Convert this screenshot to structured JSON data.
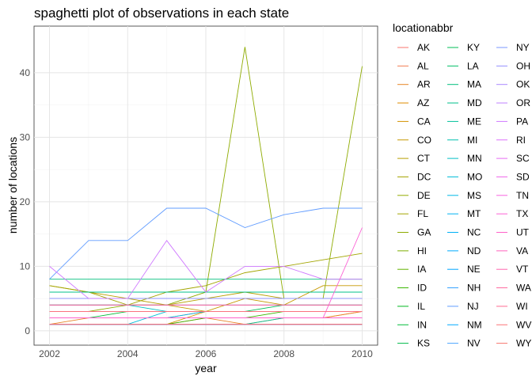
{
  "chart_data": {
    "type": "line",
    "title": "spaghetti plot of observations in each state",
    "xlabel": "year",
    "ylabel": "number of locations",
    "xlim": [
      2002,
      2010
    ],
    "ylim": [
      0,
      45
    ],
    "x_ticks": [
      2002,
      2004,
      2006,
      2008,
      2010
    ],
    "y_ticks": [
      0,
      10,
      20,
      30,
      40
    ],
    "grid": true,
    "legend_title": "locationabbr",
    "legend_position": "right",
    "x": [
      2002,
      2003,
      2004,
      2005,
      2006,
      2007,
      2008,
      2009,
      2010
    ],
    "series": [
      {
        "name": "AK",
        "color": "#F8766D",
        "values": [
          null,
          null,
          null,
          null,
          1,
          1,
          null,
          null,
          null
        ]
      },
      {
        "name": "AL",
        "color": "#F27D53",
        "values": [
          1,
          1,
          1,
          1,
          2,
          2,
          2,
          2,
          3
        ]
      },
      {
        "name": "AR",
        "color": "#E88526",
        "values": [
          1,
          2,
          2,
          2,
          2,
          1,
          2,
          2,
          3
        ]
      },
      {
        "name": "AZ",
        "color": "#DE8C00",
        "values": [
          2,
          2,
          2,
          2,
          3,
          3,
          3,
          3,
          3
        ]
      },
      {
        "name": "CA",
        "color": "#D39200",
        "values": [
          1,
          1,
          1,
          1,
          3,
          3,
          3,
          3,
          3
        ]
      },
      {
        "name": "CO",
        "color": "#C69900",
        "values": [
          4,
          4,
          4,
          4,
          3,
          5,
          4,
          7,
          7
        ]
      },
      {
        "name": "CT",
        "color": "#B79F00",
        "values": [
          7,
          6,
          5,
          4,
          5,
          6,
          5,
          5,
          5
        ]
      },
      {
        "name": "DC",
        "color": "#A6A400",
        "values": [
          1,
          1,
          1,
          1,
          1,
          1,
          1,
          1,
          1
        ]
      },
      {
        "name": "DE",
        "color": "#93AA00",
        "values": [
          3,
          3,
          3,
          3,
          3,
          3,
          3,
          3,
          3
        ]
      },
      {
        "name": "FL",
        "color": "#A3A500",
        "values": [
          7,
          6,
          4,
          6,
          7,
          9,
          10,
          11,
          12
        ]
      },
      {
        "name": "GA",
        "color": "#8EAB00",
        "values": [
          3,
          3,
          4,
          4,
          6,
          44,
          5,
          5,
          41
        ]
      },
      {
        "name": "HI",
        "color": "#7CAE00",
        "values": [
          2,
          2,
          2,
          2,
          2,
          2,
          2,
          2,
          2
        ]
      },
      {
        "name": "IA",
        "color": "#64B200",
        "values": [
          3,
          3,
          3,
          3,
          3,
          3,
          3,
          3,
          3
        ]
      },
      {
        "name": "ID",
        "color": "#39B600",
        "values": [
          1,
          1,
          1,
          1,
          2,
          2,
          3,
          3,
          3
        ]
      },
      {
        "name": "IL",
        "color": "#00B81F",
        "values": [
          2,
          2,
          2,
          2,
          2,
          2,
          2,
          2,
          2
        ]
      },
      {
        "name": "IN",
        "color": "#00BA38",
        "values": [
          2,
          2,
          3,
          3,
          3,
          3,
          3,
          3,
          3
        ]
      },
      {
        "name": "KS",
        "color": "#00BB49",
        "values": [
          3,
          3,
          3,
          3,
          3,
          3,
          3,
          3,
          3
        ]
      },
      {
        "name": "KY",
        "color": "#00BC56",
        "values": [
          3,
          3,
          3,
          3,
          3,
          3,
          4,
          4,
          4
        ]
      },
      {
        "name": "LA",
        "color": "#00BE67",
        "values": [
          5,
          5,
          5,
          5,
          5,
          5,
          5,
          5,
          5
        ]
      },
      {
        "name": "MA",
        "color": "#00BF7D",
        "values": [
          8,
          8,
          8,
          8,
          8,
          8,
          8,
          8,
          8
        ]
      },
      {
        "name": "MD",
        "color": "#00C08B",
        "values": [
          6,
          6,
          6,
          6,
          6,
          6,
          6,
          6,
          6
        ]
      },
      {
        "name": "ME",
        "color": "#00C19A",
        "values": [
          1,
          1,
          1,
          1,
          1,
          1,
          2,
          2,
          2
        ]
      },
      {
        "name": "MI",
        "color": "#00C0AF",
        "values": [
          4,
          4,
          4,
          4,
          4,
          4,
          4,
          4,
          4
        ]
      },
      {
        "name": "MN",
        "color": "#00BFC4",
        "values": [
          4,
          4,
          4,
          3,
          3,
          3,
          3,
          3,
          3
        ]
      },
      {
        "name": "MO",
        "color": "#00BCD8",
        "values": [
          1,
          1,
          1,
          3,
          3,
          3,
          3,
          3,
          3
        ]
      },
      {
        "name": "MS",
        "color": "#00B8E7",
        "values": [
          2,
          2,
          2,
          2,
          2,
          2,
          2,
          2,
          2
        ]
      },
      {
        "name": "MT",
        "color": "#00B4F0",
        "values": [
          1,
          1,
          1,
          1,
          1,
          1,
          1,
          1,
          1
        ]
      },
      {
        "name": "NC",
        "color": "#00B0F6",
        "values": [
          2,
          2,
          2,
          2,
          3,
          3,
          3,
          3,
          3
        ]
      },
      {
        "name": "ND",
        "color": "#00ABFD",
        "values": [
          1,
          1,
          1,
          1,
          1,
          1,
          1,
          1,
          1
        ]
      },
      {
        "name": "NE",
        "color": "#00A5FF",
        "values": [
          1,
          1,
          1,
          1,
          1,
          1,
          1,
          1,
          1
        ]
      },
      {
        "name": "NH",
        "color": "#35A2FF",
        "values": [
          1,
          1,
          1,
          1,
          1,
          1,
          1,
          1,
          1
        ]
      },
      {
        "name": "NJ",
        "color": "#619CFF",
        "values": [
          8,
          14,
          14,
          19,
          19,
          16,
          18,
          19,
          19
        ]
      },
      {
        "name": "NM",
        "color": "#00A9FF",
        "values": [
          3,
          3,
          3,
          3,
          3,
          3,
          3,
          3,
          3
        ]
      },
      {
        "name": "NV",
        "color": "#4CA6FF",
        "values": [
          1,
          1,
          1,
          1,
          1,
          1,
          1,
          1,
          1
        ]
      },
      {
        "name": "NY",
        "color": "#7997FF",
        "values": [
          5,
          5,
          5,
          5,
          5,
          5,
          5,
          5,
          5
        ]
      },
      {
        "name": "OH",
        "color": "#9590FF",
        "values": [
          5,
          5,
          5,
          5,
          5,
          5,
          5,
          5,
          5
        ]
      },
      {
        "name": "OK",
        "color": "#AC88FF",
        "values": [
          3,
          3,
          3,
          3,
          3,
          3,
          3,
          3,
          3
        ]
      },
      {
        "name": "OR",
        "color": "#BF80FF",
        "values": [
          3,
          3,
          3,
          3,
          3,
          3,
          3,
          3,
          3
        ]
      },
      {
        "name": "PA",
        "color": "#CF78FF",
        "values": [
          10,
          5,
          5,
          14,
          6,
          10,
          10,
          8,
          8
        ]
      },
      {
        "name": "RI",
        "color": "#DC71FA",
        "values": [
          2,
          2,
          2,
          2,
          2,
          2,
          2,
          2,
          2
        ]
      },
      {
        "name": "SC",
        "color": "#E76BF3",
        "values": [
          3,
          3,
          3,
          3,
          3,
          3,
          3,
          3,
          3
        ]
      },
      {
        "name": "SD",
        "color": "#F066EA",
        "values": [
          2,
          2,
          2,
          2,
          2,
          2,
          2,
          2,
          2
        ]
      },
      {
        "name": "TN",
        "color": "#F763E0",
        "values": [
          1,
          1,
          1,
          1,
          1,
          1,
          1,
          1,
          1
        ]
      },
      {
        "name": "TX",
        "color": "#FC61D5",
        "values": [
          2,
          2,
          2,
          2,
          2,
          2,
          2,
          2,
          16
        ]
      },
      {
        "name": "UT",
        "color": "#FF61C9",
        "values": [
          2,
          2,
          2,
          2,
          2,
          2,
          2,
          2,
          2
        ]
      },
      {
        "name": "VA",
        "color": "#FF62BC",
        "values": [
          4,
          4,
          4,
          4,
          4,
          4,
          4,
          4,
          4
        ]
      },
      {
        "name": "VT",
        "color": "#FF65AE",
        "values": [
          3,
          3,
          3,
          3,
          3,
          3,
          3,
          3,
          3
        ]
      },
      {
        "name": "WA",
        "color": "#FF689F",
        "values": [
          4,
          4,
          4,
          4,
          4,
          4,
          4,
          4,
          4
        ]
      },
      {
        "name": "WI",
        "color": "#FF6C91",
        "values": [
          1,
          1,
          1,
          1,
          1,
          1,
          1,
          1,
          1
        ]
      },
      {
        "name": "WV",
        "color": "#FA7376",
        "values": [
          3,
          3,
          3,
          3,
          3,
          3,
          3,
          3,
          3
        ]
      },
      {
        "name": "WY",
        "color": "#F8766D",
        "values": [
          1,
          1,
          1,
          1,
          1,
          1,
          1,
          1,
          1
        ]
      }
    ]
  }
}
